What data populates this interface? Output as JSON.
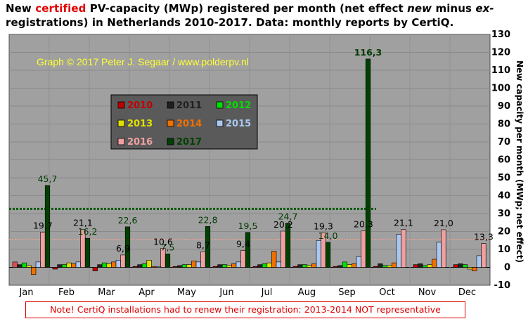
{
  "title": {
    "part1": "New ",
    "part2": "certified",
    "part3": " PV-capacity (MWp) registered per month (net effect ",
    "part4": "new",
    "part5": " minus ",
    "part6": "ex-",
    "part7": "registrations) in Netherlands 2010-2017. Data: monthly reports by CertiQ."
  },
  "watermark": "Graph © 2017 Peter J. Segaar / www.polderpv.nl",
  "note": "Note! CertiQ installations had to renew their registration: 2013-2014 NOT representative",
  "colors": {
    "plot_bg": "#a0a0a0",
    "legend_bg": "#5a5a5a",
    "watermark": "#ffff33",
    "avg_2017_line": "#005a00",
    "avg_2016_line": "#f0a090"
  },
  "chart_data": {
    "type": "bar",
    "categories": [
      "Jan",
      "Feb",
      "Mar",
      "Apr",
      "May",
      "Jun",
      "Jul",
      "Aug",
      "Sep",
      "Oct",
      "Nov",
      "Dec"
    ],
    "ylabel": "New capacity per month (MWp; net effect)",
    "ylim": [
      -10,
      130
    ],
    "yticks": [
      -10,
      0,
      10,
      20,
      30,
      40,
      50,
      60,
      70,
      80,
      90,
      100,
      110,
      120,
      130
    ],
    "grid": true,
    "legend": {
      "placement": "upper-left",
      "columns": 3
    },
    "series": [
      {
        "name": "2010",
        "color": "#c00000",
        "values": [
          3,
          -1,
          -2,
          0.5,
          0.5,
          0.5,
          0.5,
          0.5,
          0.5,
          0.5,
          1.5,
          1.5
        ]
      },
      {
        "name": "2011",
        "color": "#202020",
        "values": [
          1.5,
          1.5,
          1.5,
          1.5,
          1,
          1.5,
          1.5,
          1.5,
          1,
          2,
          2,
          2
        ]
      },
      {
        "name": "2012",
        "color": "#00e000",
        "values": [
          2.5,
          1.5,
          2.5,
          2,
          1.5,
          1.5,
          2,
          1.5,
          3,
          1,
          1,
          1.5
        ]
      },
      {
        "name": "2013",
        "color": "#e0e000",
        "values": [
          1,
          2.5,
          2,
          4,
          1.5,
          1,
          2.5,
          1,
          1.5,
          1,
          1.5,
          -1
        ]
      },
      {
        "name": "2014",
        "color": "#f07000",
        "values": [
          -4,
          2,
          3,
          0.5,
          3.5,
          2,
          9,
          2,
          2,
          2.5,
          4.5,
          -2
        ]
      },
      {
        "name": "2015",
        "color": "#a8c8f0",
        "values": [
          3,
          3,
          4,
          0.5,
          3,
          3,
          3,
          15,
          6,
          18.5,
          14,
          6.5
        ]
      },
      {
        "name": "2016",
        "color": "#f0a0a0",
        "values": [
          19.7,
          21.1,
          6.9,
          10.6,
          8.7,
          9.4,
          20.2,
          19.3,
          20.3,
          21.1,
          21.0,
          13.3
        ]
      },
      {
        "name": "2017",
        "color": "#004000",
        "values": [
          45.7,
          16.2,
          22.6,
          7.5,
          22.8,
          19.5,
          24.7,
          14.0,
          116.3,
          null,
          null,
          null
        ]
      }
    ],
    "labels_2016": [
      "19,7",
      "21,1",
      "6,9",
      "10,6",
      "8,7",
      "9,4",
      "20,2",
      "19,3",
      "20,3",
      "21,1",
      "21,0",
      "13,3"
    ],
    "labels_2017": [
      "45,7",
      "16,2",
      "22,6",
      "7,5",
      "22,8",
      "19,5",
      "24,7",
      "14,0",
      "116,3",
      "",
      "",
      ""
    ],
    "average_lines": [
      {
        "series": "2017",
        "value": 32.6,
        "style": "dotted"
      },
      {
        "series": "2016",
        "value": 15.6,
        "style": "dotted"
      }
    ]
  }
}
